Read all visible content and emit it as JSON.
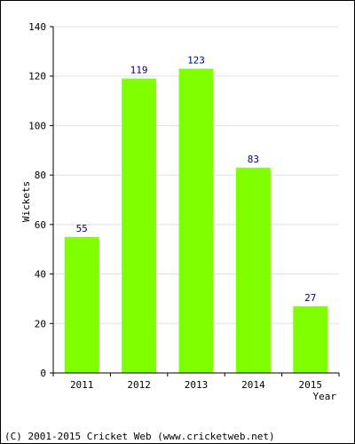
{
  "chart_data": {
    "type": "bar",
    "categories": [
      "2011",
      "2012",
      "2013",
      "2014",
      "2015"
    ],
    "values": [
      55,
      119,
      123,
      83,
      27
    ],
    "data_labels": [
      "55",
      "119",
      "123",
      "83",
      "27"
    ],
    "xlabel": "Year",
    "ylabel": "Wickets",
    "ylim": [
      0,
      140
    ],
    "yticks": [
      0,
      20,
      40,
      60,
      80,
      100,
      120,
      140
    ],
    "grid": true,
    "bar_color": "#80FF00",
    "data_label_color": "#000080"
  },
  "footer": {
    "copyright": "(C) 2001-2015 Cricket Web (www.cricketweb.net)"
  }
}
